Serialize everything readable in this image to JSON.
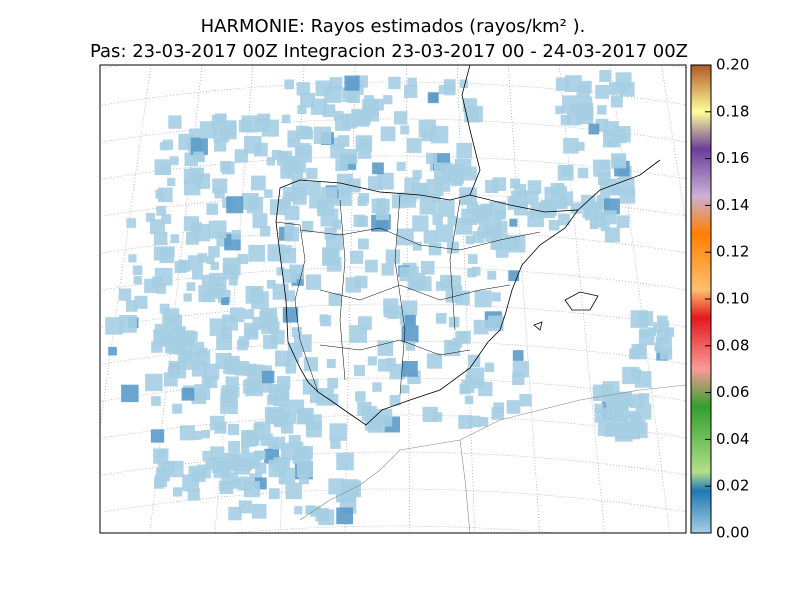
{
  "map": {
    "title": "HARMONIE: Rayos estimados  (rayos/km² ).",
    "subtitle": "Pas: 23-03-2017 00Z Integracion 23-03-2017 00 - 24-03-2017 00Z",
    "colorbar": {
      "lim": [
        0,
        0.2
      ],
      "ticks": [
        {
          "value": 0,
          "label": "0.00"
        },
        {
          "value": 0.02,
          "label": "0.02"
        },
        {
          "value": 0.04,
          "label": "0.04"
        },
        {
          "value": 0.06,
          "label": "0.06"
        },
        {
          "value": 0.08,
          "label": "0.08"
        },
        {
          "value": 0.1,
          "label": "0.10"
        },
        {
          "value": 0.12,
          "label": "0.12"
        },
        {
          "value": 0.14,
          "label": "0.14"
        },
        {
          "value": 0.16,
          "label": "0.16"
        },
        {
          "value": 0.18,
          "label": "0.18"
        },
        {
          "value": 0.2,
          "label": "0.20"
        }
      ]
    }
  }
}
